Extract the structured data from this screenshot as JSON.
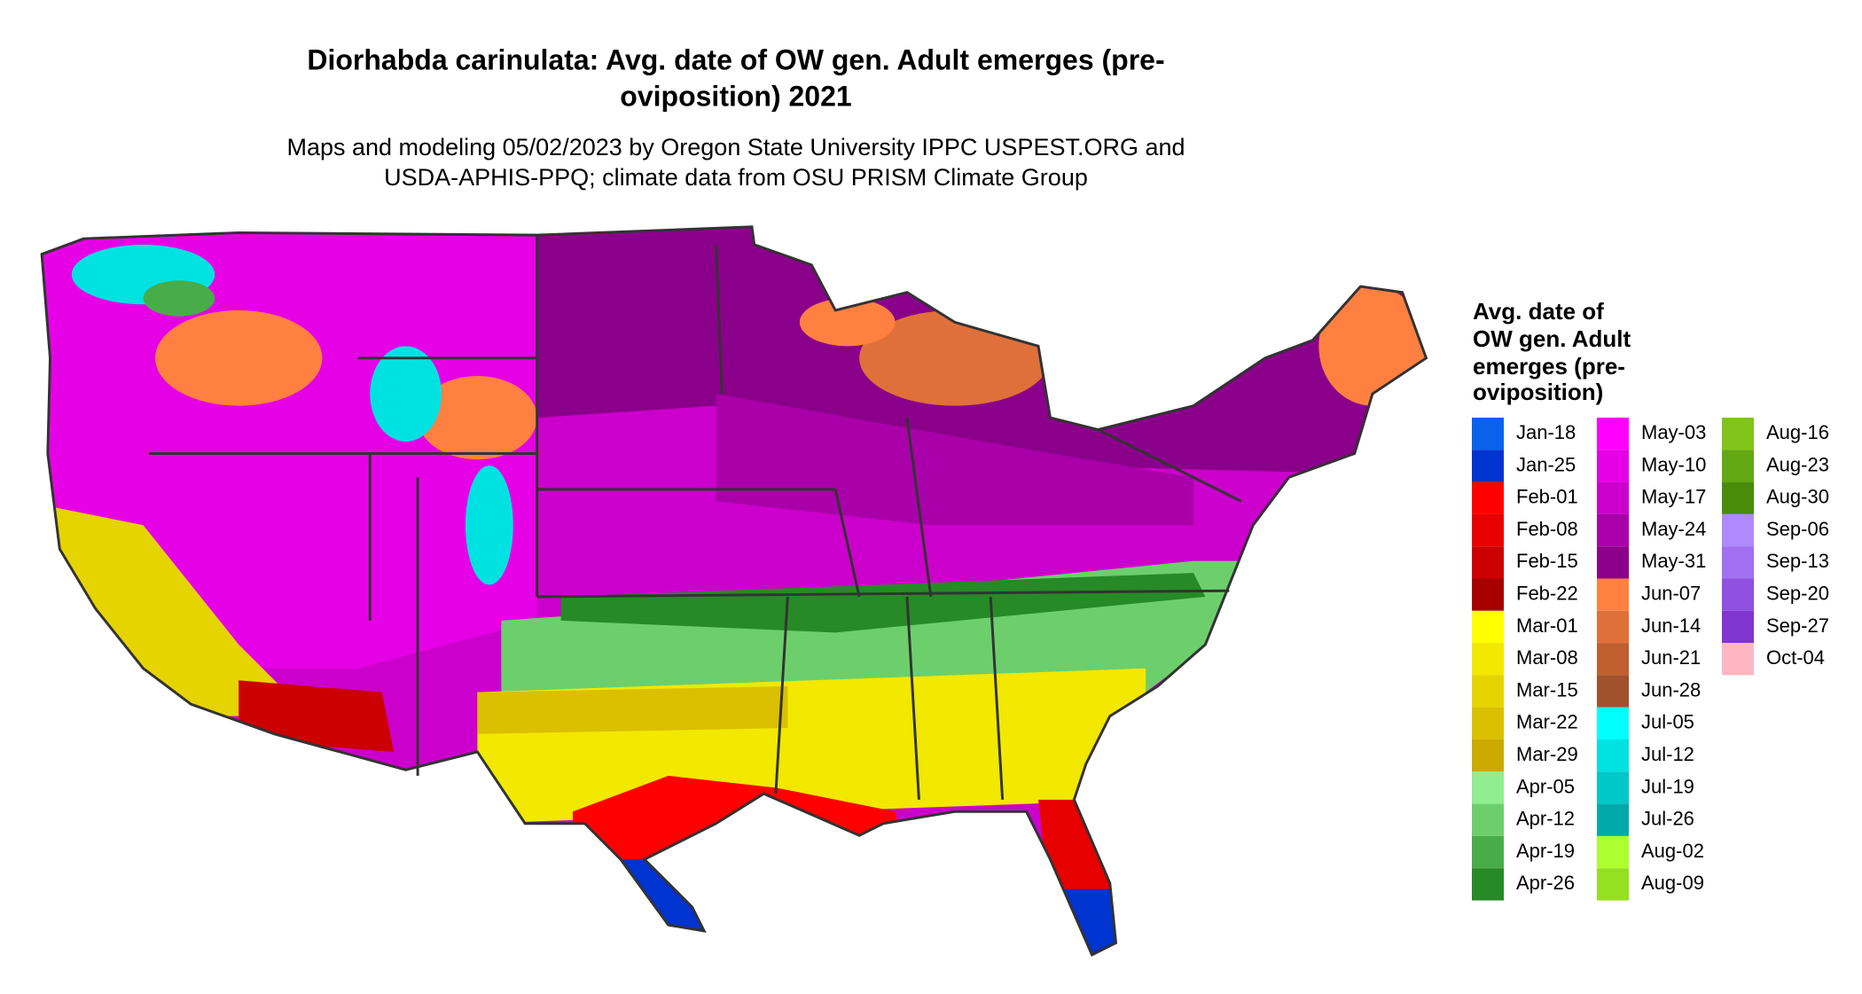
{
  "title": [
    "Diorhabda carinulata: Avg. date of OW gen. Adult emerges (pre-",
    "oviposition) 2021"
  ],
  "subtitle": [
    "Maps and modeling 05/02/2023 by Oregon State University IPPC USPEST.ORG and",
    "USDA-APHIS-PPQ; climate data from OSU PRISM Climate Group"
  ],
  "legend": {
    "title": [
      "Avg. date of",
      "OW gen. Adult",
      "emerges (pre-",
      "oviposition)"
    ],
    "items": [
      {
        "label": "Jan-18",
        "color": "#0a62ec"
      },
      {
        "label": "Jan-25",
        "color": "#0034d0"
      },
      {
        "label": "Feb-01",
        "color": "#ff0000"
      },
      {
        "label": "Feb-08",
        "color": "#e80000"
      },
      {
        "label": "Feb-15",
        "color": "#cc0000"
      },
      {
        "label": "Feb-22",
        "color": "#a60000"
      },
      {
        "label": "Mar-01",
        "color": "#ffff00"
      },
      {
        "label": "Mar-08",
        "color": "#f2e800"
      },
      {
        "label": "Mar-15",
        "color": "#e6d400"
      },
      {
        "label": "Mar-22",
        "color": "#dac000"
      },
      {
        "label": "Mar-29",
        "color": "#cdaa00"
      },
      {
        "label": "Apr-05",
        "color": "#90ee90"
      },
      {
        "label": "Apr-12",
        "color": "#6ccf6c"
      },
      {
        "label": "Apr-19",
        "color": "#48ad48"
      },
      {
        "label": "Apr-26",
        "color": "#268a26"
      },
      {
        "label": "May-03",
        "color": "#ff00ff"
      },
      {
        "label": "May-10",
        "color": "#e600e6"
      },
      {
        "label": "May-17",
        "color": "#cc00cc"
      },
      {
        "label": "May-24",
        "color": "#aa00aa"
      },
      {
        "label": "May-31",
        "color": "#8b008b"
      },
      {
        "label": "Jun-07",
        "color": "#ff8040"
      },
      {
        "label": "Jun-14",
        "color": "#e0703a"
      },
      {
        "label": "Jun-21",
        "color": "#c06030"
      },
      {
        "label": "Jun-28",
        "color": "#a0522d"
      },
      {
        "label": "Jul-05",
        "color": "#00ffff"
      },
      {
        "label": "Jul-12",
        "color": "#00e2e2"
      },
      {
        "label": "Jul-19",
        "color": "#00c8c8"
      },
      {
        "label": "Jul-26",
        "color": "#00aaaa"
      },
      {
        "label": "Aug-02",
        "color": "#adff2f"
      },
      {
        "label": "Aug-09",
        "color": "#95e020"
      },
      {
        "label": "Aug-16",
        "color": "#80c41a"
      },
      {
        "label": "Aug-23",
        "color": "#64a814"
      },
      {
        "label": "Aug-30",
        "color": "#4a8c0a"
      },
      {
        "label": "Sep-06",
        "color": "#b088ff"
      },
      {
        "label": "Sep-13",
        "color": "#a070f0"
      },
      {
        "label": "Sep-20",
        "color": "#9050e0"
      },
      {
        "label": "Sep-27",
        "color": "#8035d0"
      },
      {
        "label": "Oct-04",
        "color": "#ffb6c1"
      }
    ]
  }
}
